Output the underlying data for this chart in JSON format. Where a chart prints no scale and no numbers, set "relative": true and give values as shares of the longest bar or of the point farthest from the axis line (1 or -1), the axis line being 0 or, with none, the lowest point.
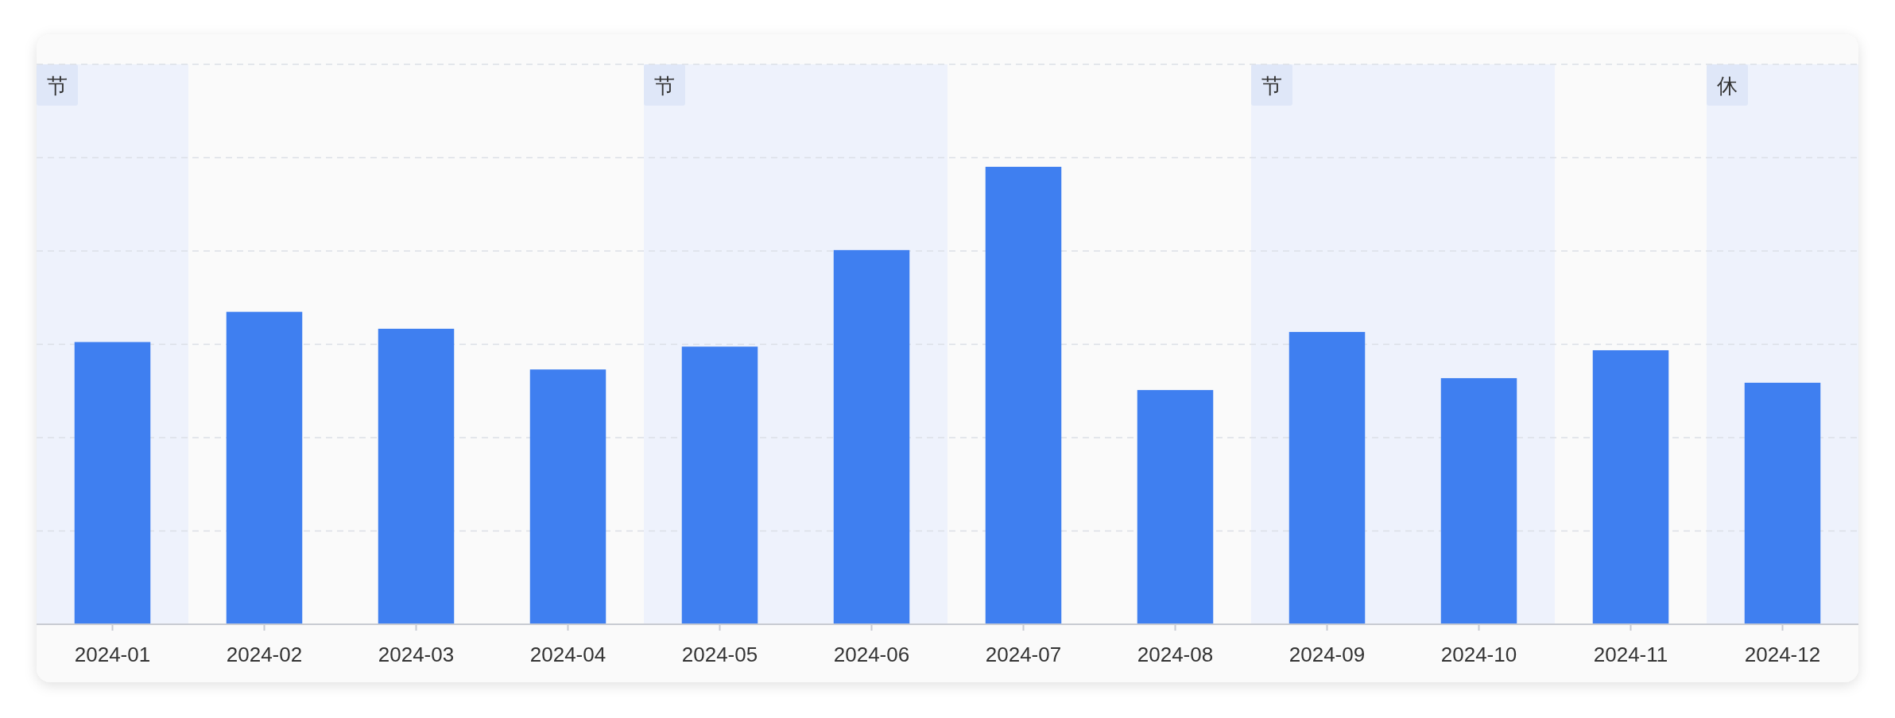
{
  "chart_data": {
    "type": "bar",
    "relative": true,
    "categories": [
      "2024-01",
      "2024-02",
      "2024-03",
      "2024-04",
      "2024-05",
      "2024-06",
      "2024-07",
      "2024-08",
      "2024-09",
      "2024-10",
      "2024-11",
      "2024-12"
    ],
    "values": [
      0.617,
      0.683,
      0.646,
      0.557,
      0.607,
      0.818,
      1,
      0.512,
      0.639,
      0.538,
      0.599,
      0.528
    ],
    "color": "#3f7ff0",
    "grid": "y",
    "bands": [
      {
        "axis": "x",
        "from": "2024-01",
        "to": "2024-01",
        "label": "节",
        "color": "#eef2fc"
      },
      {
        "axis": "x",
        "from": "2024-05",
        "to": "2024-06",
        "label": "节",
        "color": "#eef2fc"
      },
      {
        "axis": "x",
        "from": "2024-09",
        "to": "2024-10",
        "label": "节",
        "color": "#eef2fc"
      },
      {
        "axis": "x",
        "from": "2024-12",
        "to": "2024-12",
        "label": "休",
        "color": "#eef2fc"
      }
    ]
  }
}
